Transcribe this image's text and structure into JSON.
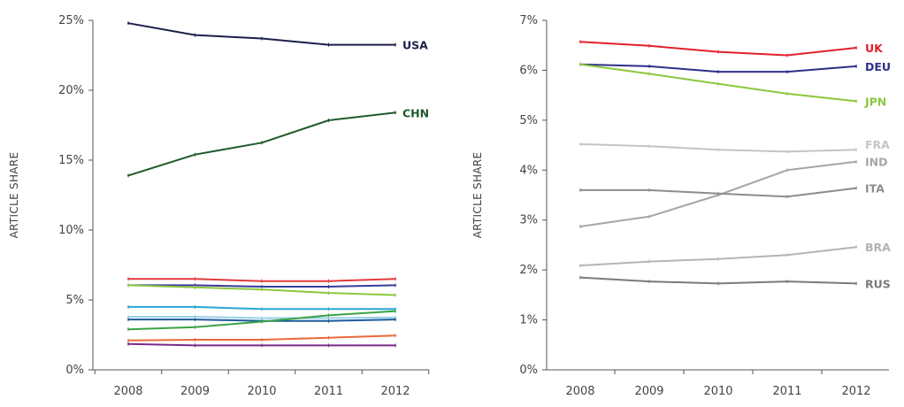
{
  "chart_data": [
    {
      "type": "line",
      "ylabel": "ARTICLE SHARE",
      "xlabel": "",
      "x": [
        "2008",
        "2009",
        "2010",
        "2011",
        "2012"
      ],
      "ylim": [
        0,
        25
      ],
      "yticks": [
        "0%",
        "5%",
        "10%",
        "15%",
        "20%",
        "25%"
      ],
      "grid": false,
      "series": [
        {
          "name": "USA",
          "color": "#1c1f4a",
          "labeled": true,
          "values": [
            24.8,
            23.95,
            23.7,
            23.25,
            23.25
          ]
        },
        {
          "name": "CHN",
          "color": "#1e5a2a",
          "labeled": true,
          "values": [
            13.9,
            15.4,
            16.25,
            17.85,
            18.4
          ]
        },
        {
          "color": "#e23a3f",
          "values": [
            6.5,
            6.5,
            6.35,
            6.35,
            6.5
          ]
        },
        {
          "color": "#3a3a9a",
          "values": [
            6.05,
            6.05,
            5.95,
            5.95,
            6.05
          ]
        },
        {
          "color": "#8cc63f",
          "values": [
            6.05,
            5.9,
            5.75,
            5.5,
            5.35
          ]
        },
        {
          "color": "#2aa6d6",
          "values": [
            4.5,
            4.5,
            4.35,
            4.35,
            4.35
          ]
        },
        {
          "color": "#9ad0ea",
          "values": [
            3.8,
            3.8,
            3.7,
            3.7,
            3.75
          ]
        },
        {
          "color": "#1d5a9a",
          "values": [
            3.6,
            3.6,
            3.5,
            3.5,
            3.6
          ]
        },
        {
          "color": "#3aa345",
          "values": [
            2.9,
            3.05,
            3.45,
            3.9,
            4.2
          ]
        },
        {
          "color": "#e86a3a",
          "values": [
            2.1,
            2.15,
            2.15,
            2.3,
            2.45
          ]
        },
        {
          "color": "#7a2a8a",
          "values": [
            1.85,
            1.75,
            1.75,
            1.75,
            1.75
          ]
        }
      ]
    },
    {
      "type": "line",
      "ylabel": "ARTICLE SHARE",
      "xlabel": "",
      "x": [
        "2008",
        "2009",
        "2010",
        "2011",
        "2012"
      ],
      "ylim": [
        0,
        7
      ],
      "yticks": [
        "0%",
        "1%",
        "2%",
        "3%",
        "4%",
        "5%",
        "6%",
        "7%"
      ],
      "grid": false,
      "series": [
        {
          "name": "UK",
          "color": "#e2202a",
          "values": [
            6.57,
            6.49,
            6.37,
            6.3,
            6.45
          ]
        },
        {
          "name": "DEU",
          "color": "#2e2e8a",
          "values": [
            6.12,
            6.08,
            5.97,
            5.97,
            6.08
          ]
        },
        {
          "name": "JPN",
          "color": "#8cc63f",
          "values": [
            6.12,
            5.93,
            5.73,
            5.53,
            5.38
          ]
        },
        {
          "name": "FRA",
          "color": "#c4c4c4",
          "values": [
            4.52,
            4.48,
            4.41,
            4.37,
            4.41
          ]
        },
        {
          "name": "IND",
          "color": "#a6a6a6",
          "values": [
            2.87,
            3.07,
            3.5,
            4.0,
            4.17
          ]
        },
        {
          "name": "ITA",
          "color": "#8c8c8c",
          "values": [
            3.6,
            3.6,
            3.53,
            3.47,
            3.64
          ]
        },
        {
          "name": "BRA",
          "color": "#b4b4b4",
          "values": [
            2.09,
            2.17,
            2.22,
            2.3,
            2.46
          ]
        },
        {
          "name": "RUS",
          "color": "#7a7a7a",
          "values": [
            1.85,
            1.77,
            1.73,
            1.77,
            1.73
          ]
        }
      ]
    }
  ]
}
